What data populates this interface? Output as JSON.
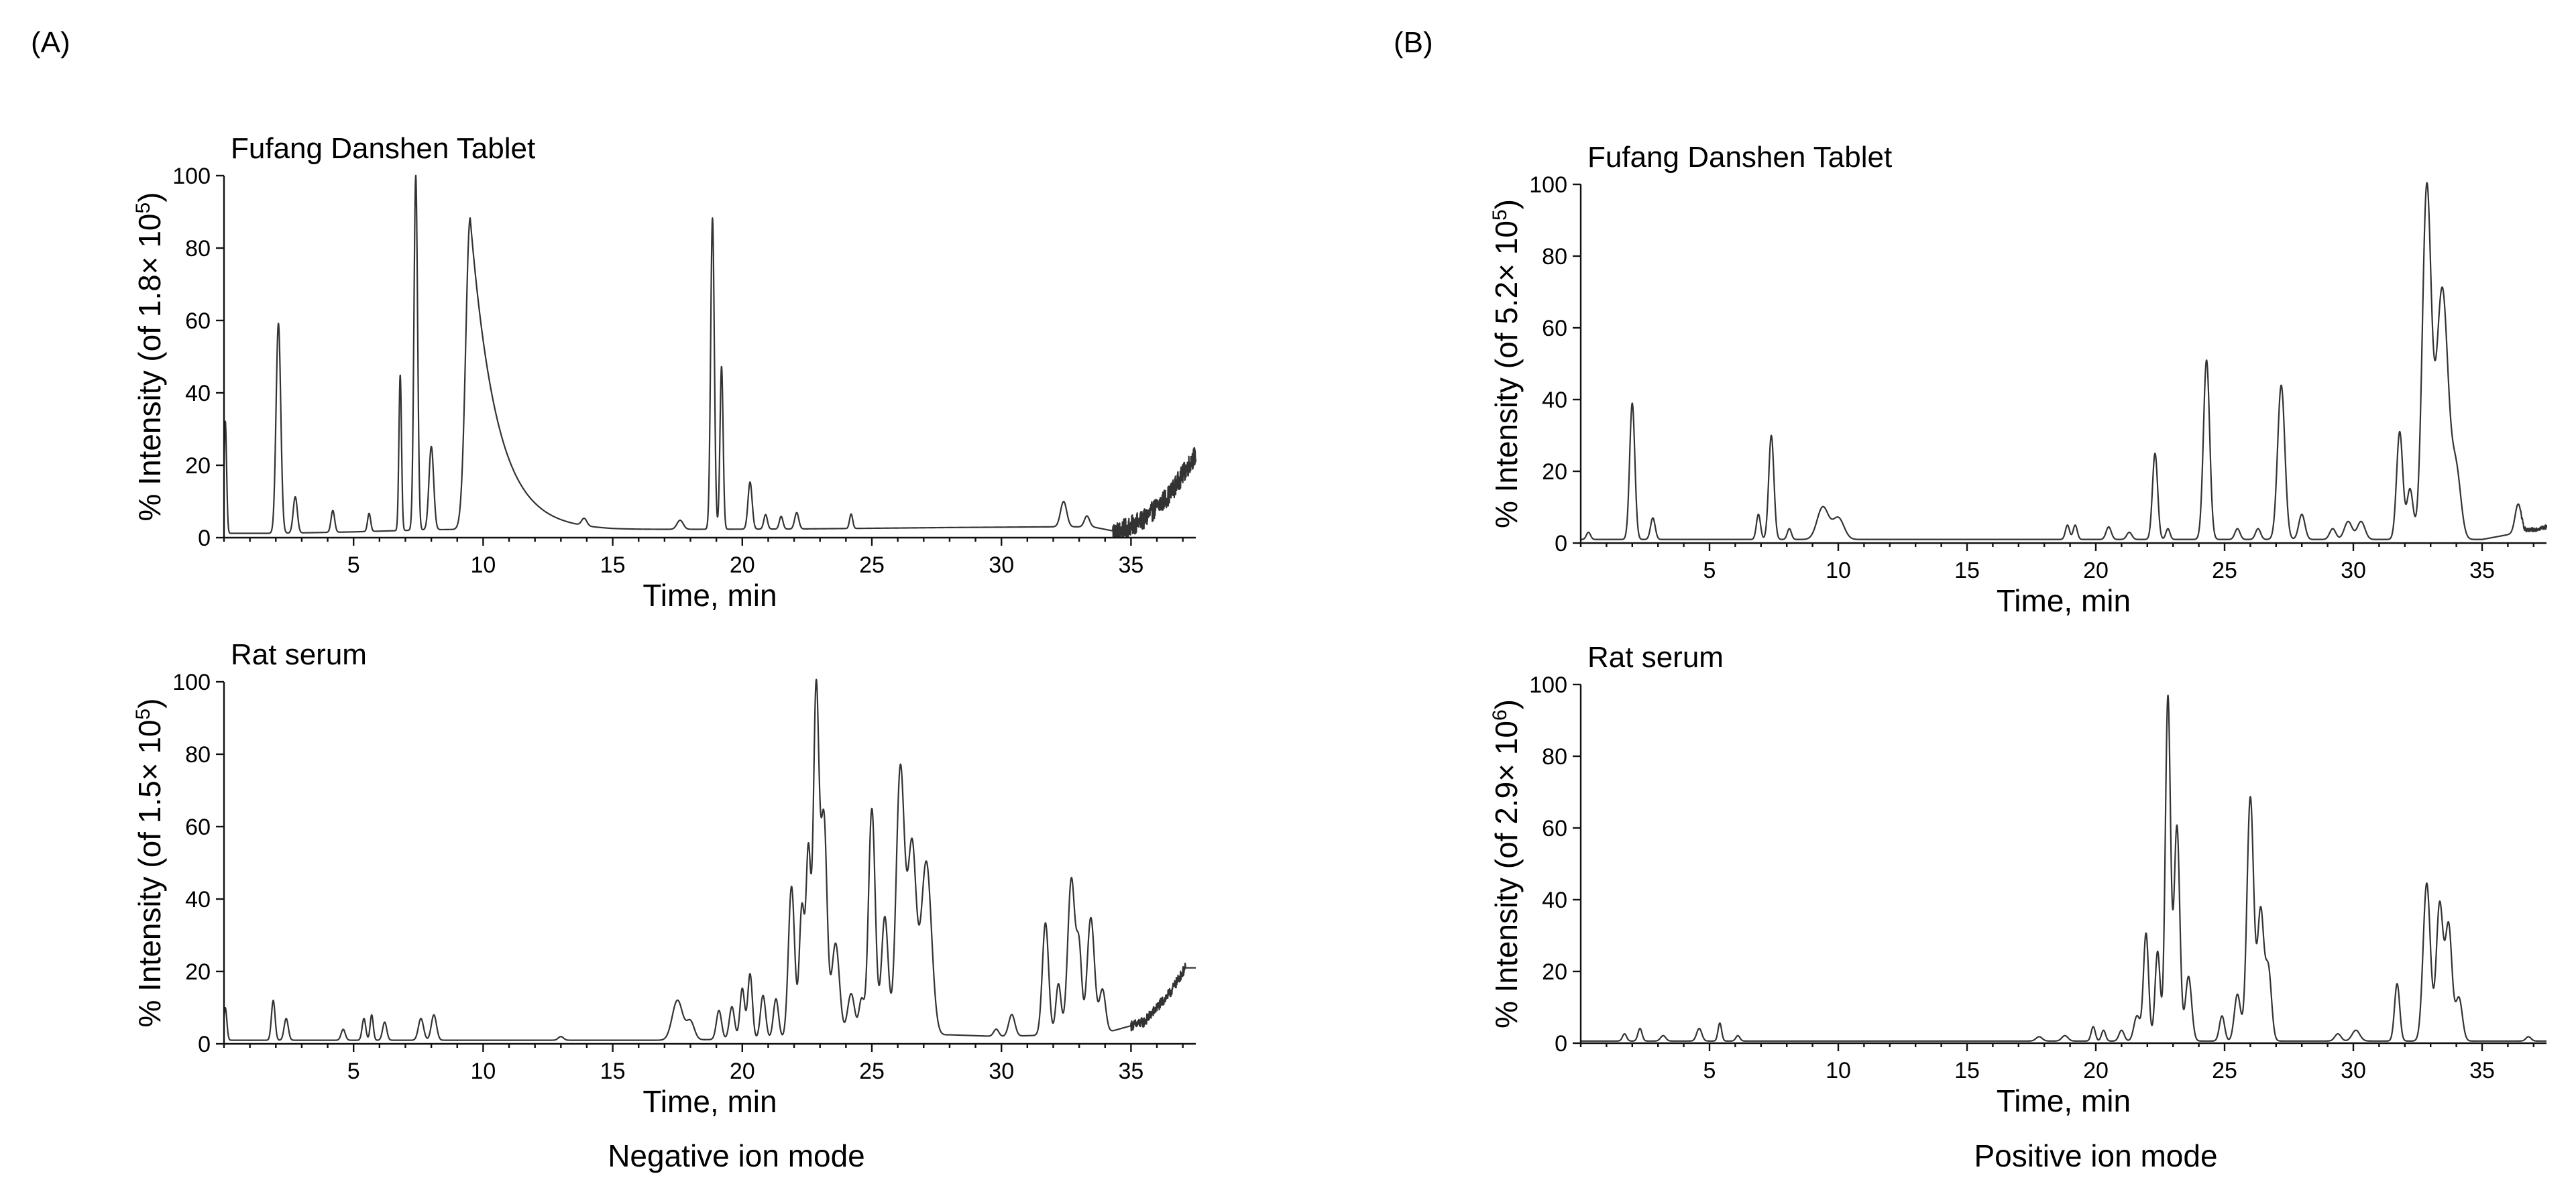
{
  "panel_labels": {
    "a": "(A)",
    "b": "(B)"
  },
  "mode_labels": {
    "negative": "Negative ion mode",
    "positive": "Positive ion mode"
  },
  "chart_data": [
    {
      "id": "neg-tablet",
      "type": "line",
      "title": "Fufang Danshen Tablet",
      "xlabel": "Time, min",
      "ylabel_main": "% Intensity (of 1.8× 10",
      "ylabel_exp": "5",
      "ylabel_tail": ")",
      "xlim": [
        0,
        37.5
      ],
      "ylim": [
        0,
        100
      ],
      "xticks": [
        5,
        10,
        15,
        20,
        25,
        30,
        35
      ],
      "yticks": [
        0,
        20,
        40,
        60,
        80,
        100
      ],
      "baseline": [
        [
          0,
          1.2
        ],
        [
          2,
          1.2
        ],
        [
          5,
          1.6
        ],
        [
          8,
          2.2
        ],
        [
          12,
          2.5
        ],
        [
          15,
          2.2
        ],
        [
          18,
          2.3
        ],
        [
          22,
          2.4
        ],
        [
          25,
          2.6
        ],
        [
          28,
          2.8
        ],
        [
          30,
          2.9
        ],
        [
          32,
          3.0
        ],
        [
          33.5,
          3.0
        ],
        [
          34.5,
          1.6
        ],
        [
          35.5,
          5
        ],
        [
          36.5,
          12
        ],
        [
          37.5,
          23
        ]
      ],
      "noise": [
        [
          34.3,
          37.5,
          2.8
        ]
      ],
      "peaks": [
        {
          "t": 0.05,
          "h": 31,
          "w": 0.05
        },
        {
          "t": 2.1,
          "h": 58,
          "w": 0.09
        },
        {
          "t": 2.75,
          "h": 10,
          "w": 0.08
        },
        {
          "t": 4.2,
          "h": 6,
          "w": 0.07
        },
        {
          "t": 5.6,
          "h": 5,
          "w": 0.06
        },
        {
          "t": 6.8,
          "h": 43,
          "w": 0.05
        },
        {
          "t": 7.4,
          "h": 98,
          "w": 0.07
        },
        {
          "t": 8.0,
          "h": 23,
          "w": 0.09
        },
        {
          "t": 9.5,
          "h": 86,
          "w": 0.17,
          "tail": 1.0
        },
        {
          "t": 13.9,
          "h": 2,
          "w": 0.1
        },
        {
          "t": 17.6,
          "h": 2.5,
          "w": 0.12
        },
        {
          "t": 18.85,
          "h": 86,
          "w": 0.07
        },
        {
          "t": 19.2,
          "h": 45,
          "w": 0.06
        },
        {
          "t": 20.3,
          "h": 13,
          "w": 0.08
        },
        {
          "t": 20.9,
          "h": 4,
          "w": 0.07
        },
        {
          "t": 21.5,
          "h": 3.5,
          "w": 0.07
        },
        {
          "t": 22.1,
          "h": 4.5,
          "w": 0.08
        },
        {
          "t": 24.2,
          "h": 4,
          "w": 0.06
        },
        {
          "t": 32.4,
          "h": 7,
          "w": 0.12
        },
        {
          "t": 33.3,
          "h": 3,
          "w": 0.1
        }
      ]
    },
    {
      "id": "neg-serum",
      "type": "line",
      "title": "Rat serum",
      "xlabel": "Time, min",
      "ylabel_main": "% Intensity (of 1.5× 10",
      "ylabel_exp": "5",
      "ylabel_tail": ")",
      "xlim": [
        0,
        37.5
      ],
      "ylim": [
        0,
        100
      ],
      "xticks": [
        5,
        10,
        15,
        20,
        25,
        30,
        35
      ],
      "yticks": [
        0,
        20,
        40,
        60,
        80,
        100
      ],
      "baseline": [
        [
          0,
          1
        ],
        [
          17,
          1
        ],
        [
          22,
          1.5
        ],
        [
          28,
          2.5
        ],
        [
          30,
          2
        ],
        [
          34,
          3
        ],
        [
          35.5,
          6
        ],
        [
          36.5,
          14
        ],
        [
          37.1,
          21
        ]
      ],
      "noise": [
        [
          35,
          37.1,
          1.4
        ]
      ],
      "peaks": [
        {
          "t": 0.05,
          "h": 9,
          "w": 0.06
        },
        {
          "t": 1.9,
          "h": 11,
          "w": 0.07
        },
        {
          "t": 2.4,
          "h": 6,
          "w": 0.08
        },
        {
          "t": 4.6,
          "h": 3,
          "w": 0.08
        },
        {
          "t": 5.4,
          "h": 6,
          "w": 0.07
        },
        {
          "t": 5.7,
          "h": 7,
          "w": 0.06
        },
        {
          "t": 6.2,
          "h": 5,
          "w": 0.08
        },
        {
          "t": 7.6,
          "h": 6,
          "w": 0.1
        },
        {
          "t": 8.1,
          "h": 7,
          "w": 0.1
        },
        {
          "t": 13.0,
          "h": 1,
          "w": 0.1
        },
        {
          "t": 17.5,
          "h": 11,
          "w": 0.2
        },
        {
          "t": 18.0,
          "h": 5,
          "w": 0.15
        },
        {
          "t": 19.1,
          "h": 8,
          "w": 0.1
        },
        {
          "t": 19.6,
          "h": 9,
          "w": 0.1
        },
        {
          "t": 20.0,
          "h": 14,
          "w": 0.09
        },
        {
          "t": 20.3,
          "h": 18,
          "w": 0.09
        },
        {
          "t": 20.8,
          "h": 12,
          "w": 0.1
        },
        {
          "t": 21.3,
          "h": 11,
          "w": 0.1
        },
        {
          "t": 21.9,
          "h": 42,
          "w": 0.12
        },
        {
          "t": 22.3,
          "h": 36,
          "w": 0.1
        },
        {
          "t": 22.55,
          "h": 50,
          "w": 0.09
        },
        {
          "t": 22.85,
          "h": 96,
          "w": 0.11
        },
        {
          "t": 23.15,
          "h": 60,
          "w": 0.12
        },
        {
          "t": 23.6,
          "h": 26,
          "w": 0.15
        },
        {
          "t": 24.2,
          "h": 12,
          "w": 0.14
        },
        {
          "t": 24.6,
          "h": 10,
          "w": 0.1
        },
        {
          "t": 25.0,
          "h": 63,
          "w": 0.13
        },
        {
          "t": 25.5,
          "h": 33,
          "w": 0.13
        },
        {
          "t": 26.1,
          "h": 74,
          "w": 0.16
        },
        {
          "t": 26.55,
          "h": 52,
          "w": 0.16
        },
        {
          "t": 27.1,
          "h": 48,
          "w": 0.2
        },
        {
          "t": 29.8,
          "h": 2,
          "w": 0.1
        },
        {
          "t": 30.4,
          "h": 6,
          "w": 0.12
        },
        {
          "t": 31.7,
          "h": 31,
          "w": 0.12
        },
        {
          "t": 32.2,
          "h": 14,
          "w": 0.1
        },
        {
          "t": 32.7,
          "h": 43,
          "w": 0.14
        },
        {
          "t": 33.0,
          "h": 22,
          "w": 0.1
        },
        {
          "t": 33.45,
          "h": 32,
          "w": 0.14
        },
        {
          "t": 33.9,
          "h": 12,
          "w": 0.12
        }
      ]
    },
    {
      "id": "pos-tablet",
      "type": "line",
      "title": "Fufang Danshen Tablet",
      "xlabel": "Time, min",
      "ylabel_main": "% Intensity (of 5.2× 10",
      "ylabel_exp": "5",
      "ylabel_tail": ")",
      "xlim": [
        0,
        37.5
      ],
      "ylim": [
        0,
        100
      ],
      "xticks": [
        5,
        10,
        15,
        20,
        25,
        30,
        35
      ],
      "yticks": [
        0,
        20,
        40,
        60,
        80,
        100
      ],
      "baseline": [
        [
          0,
          1
        ],
        [
          35,
          1
        ],
        [
          36.5,
          3
        ],
        [
          37.5,
          4.5
        ]
      ],
      "noise": [
        [
          36.5,
          37.5,
          0.6
        ]
      ],
      "peaks": [
        {
          "t": 0.3,
          "h": 2,
          "w": 0.08
        },
        {
          "t": 2.0,
          "h": 38,
          "w": 0.1
        },
        {
          "t": 2.8,
          "h": 6,
          "w": 0.09
        },
        {
          "t": 6.9,
          "h": 7,
          "w": 0.08
        },
        {
          "t": 7.4,
          "h": 29,
          "w": 0.1
        },
        {
          "t": 8.1,
          "h": 3,
          "w": 0.08
        },
        {
          "t": 9.4,
          "h": 9,
          "w": 0.22
        },
        {
          "t": 10.0,
          "h": 6,
          "w": 0.22
        },
        {
          "t": 18.9,
          "h": 4,
          "w": 0.08
        },
        {
          "t": 19.2,
          "h": 4,
          "w": 0.08
        },
        {
          "t": 20.5,
          "h": 3.5,
          "w": 0.1
        },
        {
          "t": 21.3,
          "h": 2,
          "w": 0.1
        },
        {
          "t": 22.3,
          "h": 24,
          "w": 0.1
        },
        {
          "t": 22.8,
          "h": 3,
          "w": 0.08
        },
        {
          "t": 24.3,
          "h": 50,
          "w": 0.12
        },
        {
          "t": 25.5,
          "h": 3,
          "w": 0.1
        },
        {
          "t": 26.3,
          "h": 3,
          "w": 0.1
        },
        {
          "t": 27.2,
          "h": 43,
          "w": 0.14
        },
        {
          "t": 28.0,
          "h": 7,
          "w": 0.12
        },
        {
          "t": 29.2,
          "h": 3,
          "w": 0.12
        },
        {
          "t": 29.8,
          "h": 5,
          "w": 0.15
        },
        {
          "t": 30.3,
          "h": 5,
          "w": 0.15
        },
        {
          "t": 31.8,
          "h": 30,
          "w": 0.12
        },
        {
          "t": 32.2,
          "h": 14,
          "w": 0.12
        },
        {
          "t": 32.85,
          "h": 97,
          "w": 0.17
        },
        {
          "t": 33.45,
          "h": 70,
          "w": 0.23
        },
        {
          "t": 34.0,
          "h": 18,
          "w": 0.18
        },
        {
          "t": 36.4,
          "h": 8,
          "w": 0.12
        }
      ]
    },
    {
      "id": "pos-serum",
      "type": "line",
      "title": "Rat serum",
      "xlabel": "Time, min",
      "ylabel_main": "% Intensity (of 2.9× 10",
      "ylabel_exp": "6",
      "ylabel_tail": ")",
      "xlim": [
        0,
        37.5
      ],
      "ylim": [
        0,
        100
      ],
      "xticks": [
        5,
        10,
        15,
        20,
        25,
        30,
        35
      ],
      "yticks": [
        0,
        20,
        40,
        60,
        80,
        100
      ],
      "baseline": [
        [
          0,
          0.6
        ],
        [
          37.5,
          0.6
        ]
      ],
      "noise": [],
      "peaks": [
        {
          "t": 1.7,
          "h": 2,
          "w": 0.08
        },
        {
          "t": 2.3,
          "h": 3.5,
          "w": 0.08
        },
        {
          "t": 3.2,
          "h": 1.5,
          "w": 0.1
        },
        {
          "t": 4.6,
          "h": 3.5,
          "w": 0.1
        },
        {
          "t": 5.4,
          "h": 5,
          "w": 0.07
        },
        {
          "t": 6.1,
          "h": 1.5,
          "w": 0.08
        },
        {
          "t": 17.8,
          "h": 1.2,
          "w": 0.12
        },
        {
          "t": 18.8,
          "h": 1.5,
          "w": 0.12
        },
        {
          "t": 19.9,
          "h": 4,
          "w": 0.08
        },
        {
          "t": 20.3,
          "h": 3,
          "w": 0.08
        },
        {
          "t": 21.0,
          "h": 3,
          "w": 0.1
        },
        {
          "t": 21.6,
          "h": 7,
          "w": 0.12
        },
        {
          "t": 21.95,
          "h": 30,
          "w": 0.1
        },
        {
          "t": 22.4,
          "h": 25,
          "w": 0.1
        },
        {
          "t": 22.8,
          "h": 96,
          "w": 0.1
        },
        {
          "t": 23.15,
          "h": 60,
          "w": 0.11
        },
        {
          "t": 23.6,
          "h": 18,
          "w": 0.12
        },
        {
          "t": 24.9,
          "h": 7,
          "w": 0.1
        },
        {
          "t": 25.5,
          "h": 13,
          "w": 0.12
        },
        {
          "t": 26.0,
          "h": 68,
          "w": 0.13
        },
        {
          "t": 26.4,
          "h": 36,
          "w": 0.12
        },
        {
          "t": 26.7,
          "h": 20,
          "w": 0.12
        },
        {
          "t": 29.4,
          "h": 2,
          "w": 0.12
        },
        {
          "t": 30.1,
          "h": 3,
          "w": 0.15
        },
        {
          "t": 31.7,
          "h": 16,
          "w": 0.1
        },
        {
          "t": 32.85,
          "h": 44,
          "w": 0.14
        },
        {
          "t": 33.35,
          "h": 38,
          "w": 0.13
        },
        {
          "t": 33.7,
          "h": 32,
          "w": 0.13
        },
        {
          "t": 34.1,
          "h": 12,
          "w": 0.13
        },
        {
          "t": 36.8,
          "h": 1.2,
          "w": 0.1
        }
      ]
    }
  ]
}
